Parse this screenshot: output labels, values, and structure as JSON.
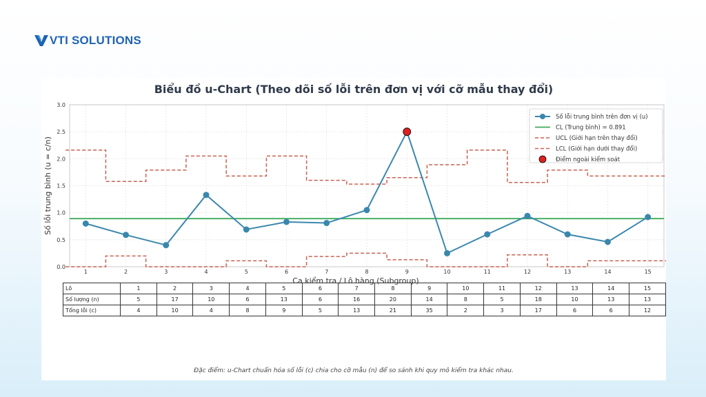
{
  "brand": {
    "name": "VTI SOLUTIONS",
    "logo_icon": "vti-chevron-logo",
    "colors": {
      "primary": "#1e63b4",
      "accent": "#3fa0e0"
    }
  },
  "chart": {
    "footnote": "Đặc điểm: u-Chart chuẩn hóa số lỗi (c) chia cho cỡ mẫu (n) để so sánh khi quy mô kiểm tra khác nhau."
  },
  "chart_data": {
    "type": "line",
    "title": "Biểu đồ u-Chart (Theo dõi số lỗi trên đơn vị với cỡ mẫu thay đổi)",
    "xlabel": "Ca kiểm tra / Lô hàng (Subgroup)",
    "ylabel": "Số lỗi trung bình (u = c/n)",
    "xlim": [
      0.6,
      15.4
    ],
    "ylim": [
      0,
      3.0
    ],
    "x": [
      1,
      2,
      3,
      4,
      5,
      6,
      7,
      8,
      9,
      10,
      11,
      12,
      13,
      14,
      15
    ],
    "x_ticks": [
      1,
      2,
      3,
      4,
      5,
      6,
      7,
      8,
      9,
      10,
      11,
      12,
      13,
      14,
      15
    ],
    "y_ticks": [
      "0.0",
      "0.5",
      "1.0",
      "1.5",
      "2.0",
      "2.5",
      "3.0"
    ],
    "grid": true,
    "legend_position": "top-right",
    "series": [
      {
        "name": "Số lỗi trung bình trên đơn vị (u)",
        "color": "#3a87ad",
        "values": [
          0.8,
          0.59,
          0.4,
          1.33,
          0.69,
          0.83,
          0.81,
          1.05,
          2.5,
          0.25,
          0.6,
          0.94,
          0.6,
          0.46,
          0.92
        ]
      },
      {
        "name": "CL (Trung bình) = 0.891",
        "color": "#3caa5a",
        "value": 0.891
      },
      {
        "name": "UCL (Giới hạn trên thay đổi)",
        "color": "#c9604f",
        "values": [
          2.16,
          1.58,
          1.79,
          2.05,
          1.68,
          2.05,
          1.6,
          1.53,
          1.65,
          1.89,
          2.16,
          1.56,
          1.79,
          1.68,
          1.68
        ]
      },
      {
        "name": "LCL (Giới hạn dưới thay đổi)",
        "color": "#c9604f",
        "values": [
          0.0,
          0.2,
          0.0,
          0.0,
          0.11,
          0.0,
          0.19,
          0.25,
          0.13,
          0.0,
          0.0,
          0.22,
          0.0,
          0.11,
          0.11
        ]
      },
      {
        "name": "Điểm ngoài kiểm soát",
        "color": "#e02020",
        "points": [
          {
            "x": 9,
            "y": 2.5
          }
        ]
      }
    ]
  },
  "table": {
    "rows": [
      {
        "label": "Lô",
        "cells": [
          "1",
          "2",
          "3",
          "4",
          "5",
          "6",
          "7",
          "8",
          "9",
          "10",
          "11",
          "12",
          "13",
          "14",
          "15"
        ]
      },
      {
        "label": "Số lượng (n)",
        "cells": [
          "5",
          "17",
          "10",
          "6",
          "13",
          "6",
          "16",
          "20",
          "14",
          "8",
          "5",
          "18",
          "10",
          "13",
          "13"
        ]
      },
      {
        "label": "Tổng lỗi (c)",
        "cells": [
          "4",
          "10",
          "4",
          "8",
          "9",
          "5",
          "13",
          "21",
          "35",
          "2",
          "3",
          "17",
          "6",
          "6",
          "12"
        ]
      }
    ]
  }
}
